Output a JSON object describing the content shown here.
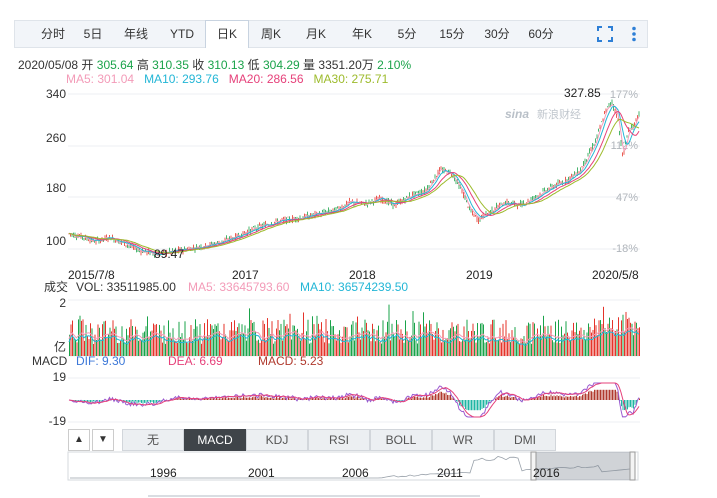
{
  "tabs": [
    "分时",
    "5日",
    "年线",
    "YTD",
    "日K",
    "周K",
    "月K",
    "年K",
    "5分",
    "15分",
    "30分",
    "60分"
  ],
  "active_tab": "日K",
  "quote": {
    "date": "2020/05/08",
    "open_label": "开",
    "open": "305.64",
    "high_label": "高",
    "high": "310.35",
    "close_label": "收",
    "close": "310.13",
    "low_label": "低",
    "low": "304.29",
    "vol_label": "量",
    "vol": "3351.20万",
    "change": "2.10%"
  },
  "ma": {
    "ma5": "MA5: 301.04",
    "ma10": "MA10: 293.76",
    "ma20": "MA20: 286.56",
    "ma30": "MA30: 275.71"
  },
  "main_chart": {
    "y_ticks": [
      "340",
      "260",
      "180",
      "100"
    ],
    "pct_ticks": [
      "177%",
      "112%",
      "47%",
      "-18%"
    ],
    "x_labels": [
      "2015/7/8",
      "2017",
      "2018",
      "2019",
      "2020/5/8"
    ],
    "max_label": "327.85",
    "min_label": "89.47",
    "watermark": "新浪财经",
    "colors": {
      "ma5": "#f39bb8",
      "ma10": "#23b6d6",
      "ma20": "#e6417a",
      "ma30": "#9dbb2c",
      "up": "#e5332a",
      "down": "#1aa34a"
    }
  },
  "volume": {
    "title": "成交",
    "vol": "VOL: 33511985.00",
    "ma5": "MA5: 33645793.60",
    "ma10": "MA10: 36574239.50",
    "y_top": "2",
    "y_unit": "亿"
  },
  "macd": {
    "title": "MACD",
    "dif": "DIF: 9.30",
    "dea": "DEA: 6.69",
    "macd": "MACD: 5.23",
    "y_top": "19",
    "y_bottom": "-19"
  },
  "indicators": [
    "无",
    "MACD",
    "KDJ",
    "RSI",
    "BOLL",
    "WR",
    "DMI"
  ],
  "active_indicator": "MACD",
  "navigator": {
    "labels": [
      "1996",
      "2001",
      "2006",
      "2011",
      "2016"
    ]
  }
}
